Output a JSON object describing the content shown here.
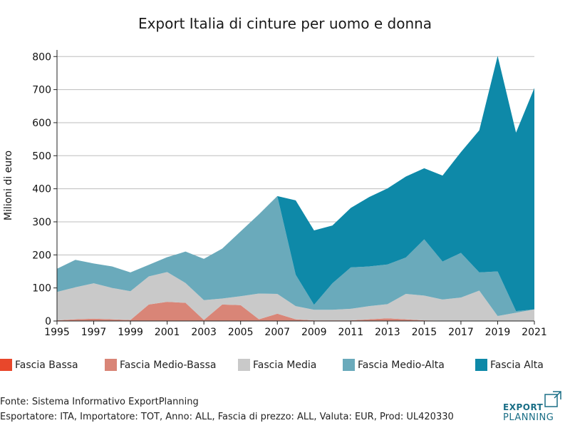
{
  "chart_data": {
    "type": "area",
    "title": "Export Italia di cinture per uomo e donna",
    "xlabel": "",
    "ylabel": "Milioni di euro",
    "ylim": [
      0,
      820
    ],
    "yticks": [
      0,
      100,
      200,
      300,
      400,
      500,
      600,
      700,
      800
    ],
    "xlim": [
      1995,
      2021
    ],
    "xticks": [
      1995,
      1997,
      1999,
      2001,
      2003,
      2005,
      2007,
      2009,
      2011,
      2013,
      2015,
      2017,
      2019,
      2021
    ],
    "grid": "horizontal",
    "legend_position": "bottom",
    "x": [
      1995,
      1996,
      1997,
      1998,
      1999,
      2000,
      2001,
      2002,
      2003,
      2004,
      2005,
      2006,
      2007,
      2008,
      2009,
      2010,
      2011,
      2012,
      2013,
      2014,
      2015,
      2016,
      2017,
      2018,
      2019,
      2020,
      2021
    ],
    "series": [
      {
        "name": "Fascia Bassa",
        "color": "#e8472b",
        "values": [
          0,
          0,
          0,
          0,
          0,
          0,
          0,
          0,
          0,
          0,
          0,
          0,
          0,
          0,
          0,
          0,
          0,
          0,
          0,
          0,
          0,
          0,
          0,
          0,
          0,
          0,
          0
        ]
      },
      {
        "name": "Fascia Medio-Bassa",
        "color": "#d98577",
        "values": [
          2,
          5,
          7,
          5,
          3,
          50,
          58,
          55,
          3,
          50,
          48,
          5,
          22,
          5,
          2,
          2,
          2,
          5,
          8,
          5,
          2,
          1,
          1,
          1,
          0,
          0,
          0
        ]
      },
      {
        "name": "Fascia Media",
        "color": "#c9c9c9",
        "values": [
          86,
          97,
          107,
          95,
          87,
          85,
          90,
          60,
          60,
          18,
          27,
          78,
          60,
          40,
          32,
          32,
          35,
          40,
          43,
          77,
          75,
          64,
          70,
          91,
          15,
          25,
          35
        ]
      },
      {
        "name": "Fascia Medio-Alta",
        "color": "#6aaabb",
        "values": [
          70,
          83,
          60,
          65,
          57,
          35,
          45,
          95,
          125,
          151,
          196,
          240,
          296,
          95,
          15,
          80,
          125,
          120,
          120,
          110,
          170,
          115,
          135,
          55,
          135,
          5,
          0
        ]
      },
      {
        "name": "Fascia Alta",
        "color": "#0e89a8",
        "values": [
          0,
          0,
          0,
          0,
          0,
          0,
          0,
          0,
          0,
          0,
          0,
          0,
          0,
          225,
          225,
          175,
          180,
          210,
          230,
          245,
          215,
          260,
          305,
          430,
          652,
          540,
          670
        ]
      }
    ]
  },
  "footer": {
    "source": "Fonte: Sistema Informativo ExportPlanning",
    "details": "Esportatore: ITA, Importatore: TOT, Anno: ALL, Fascia di prezzo: ALL, Valuta: EUR, Prod: UL420330"
  },
  "logo": {
    "line1": "EXPORT",
    "line2": "PLANNING",
    "color": "#1a6e86"
  }
}
